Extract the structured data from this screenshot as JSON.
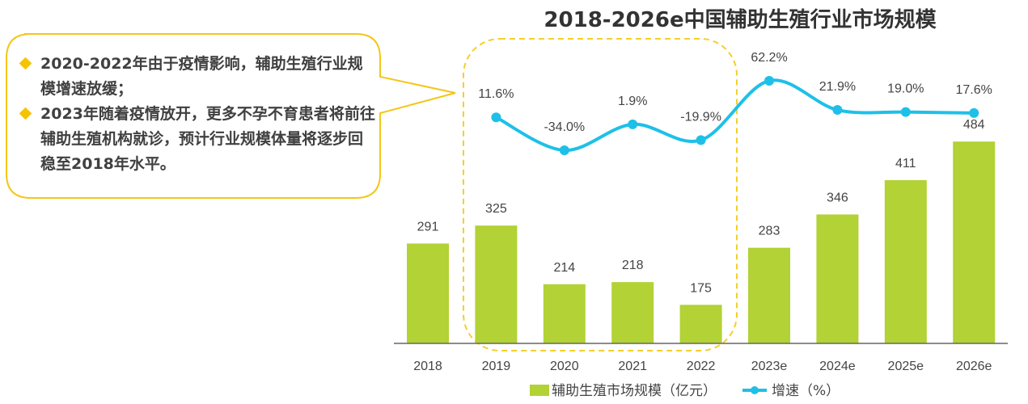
{
  "chart_data": {
    "type": "bar",
    "title": "2018-2026e中国辅助生殖行业市场规模",
    "categories": [
      "2018",
      "2019",
      "2020",
      "2021",
      "2022",
      "2023e",
      "2024e",
      "2025e",
      "2026e"
    ],
    "series": [
      {
        "name": "辅助生殖市场规模（亿元）",
        "type": "bar",
        "values": [
          291,
          325,
          214,
          218,
          175,
          283,
          346,
          411,
          484
        ],
        "labels": [
          "291",
          "325",
          "214",
          "218",
          "175",
          "283",
          "346",
          "411",
          "484"
        ],
        "color": "#b2d235"
      },
      {
        "name": "增速（%）",
        "type": "line",
        "values": [
          null,
          11.6,
          -34.0,
          1.9,
          -19.9,
          62.2,
          21.9,
          19.0,
          17.6
        ],
        "labels": [
          "",
          "11.6%",
          "-34.0%",
          "1.9%",
          "-19.9%",
          "62.2%",
          "21.9%",
          "19.0%",
          "17.6%"
        ],
        "color": "#1ec0e8"
      }
    ],
    "legend_position": "bottom",
    "grid": false,
    "highlight": {
      "range": [
        "2019",
        "2022"
      ],
      "style": "dashed",
      "color": "#f5cf2a"
    }
  },
  "callout": {
    "border_color": "#f5c518",
    "bullets": [
      "2020-2022年由于疫情影响，辅助生殖行业规模增速放缓；",
      "2023年随着疫情放开，更多不孕不育患者将前往辅助生殖机构就诊，预计行业规模体量将逐步回稳至2018年水平。"
    ]
  }
}
